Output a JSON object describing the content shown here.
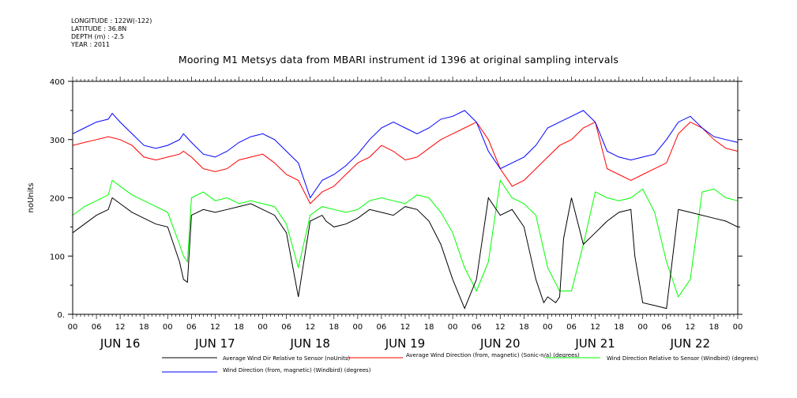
{
  "meta": {
    "longitude": "LONGITUDE : 122W(-122)",
    "latitude": "LATITUDE : 36.8N",
    "depth": "DEPTH (m) : -2.5",
    "year": "YEAR : 2011"
  },
  "chart_data": {
    "type": "line",
    "title": "Mooring M1 Metsys data from MBARI instrument id 1396 at original sampling intervals",
    "ylabel": "noUnits",
    "xlabel": "",
    "ylim": [
      0,
      400
    ],
    "y_ticks": [
      "0.",
      "100",
      "200",
      "300",
      "400"
    ],
    "x_range_hours": [
      0,
      168
    ],
    "x_hour_labels": [
      "00",
      "06",
      "12",
      "18",
      "00",
      "06",
      "12",
      "18",
      "00",
      "06",
      "12",
      "18",
      "00",
      "06",
      "12",
      "18",
      "00",
      "06",
      "12",
      "18",
      "00",
      "06",
      "12",
      "18",
      "00",
      "06",
      "12",
      "18",
      "00"
    ],
    "day_labels": [
      "JUN 16",
      "JUN 17",
      "JUN 18",
      "JUN 19",
      "JUN 20",
      "JUN 21",
      "JUN 22"
    ],
    "grid": false,
    "series": [
      {
        "name": "Average Wind Dir Relative to Sensor (noUnits)",
        "color": "#000000",
        "x": [
          0,
          3,
          6,
          9,
          10,
          12,
          15,
          18,
          21,
          24,
          27,
          28,
          29,
          30,
          33,
          36,
          39,
          42,
          45,
          48,
          51,
          54,
          57,
          60,
          63,
          64,
          66,
          69,
          72,
          75,
          78,
          81,
          84,
          87,
          90,
          93,
          96,
          99,
          102,
          105,
          108,
          111,
          114,
          117,
          119,
          120,
          122,
          123,
          124,
          126,
          129,
          132,
          135,
          138,
          141,
          142,
          144,
          147,
          150,
          153,
          156,
          159,
          162,
          165,
          168
        ],
        "values": [
          140,
          155,
          170,
          180,
          200,
          190,
          175,
          165,
          155,
          150,
          90,
          60,
          55,
          170,
          180,
          175,
          180,
          185,
          190,
          180,
          170,
          140,
          30,
          160,
          170,
          160,
          150,
          155,
          165,
          180,
          175,
          170,
          185,
          180,
          160,
          120,
          60,
          10,
          60,
          200,
          170,
          180,
          150,
          60,
          20,
          30,
          20,
          30,
          130,
          200,
          120,
          140,
          160,
          175,
          180,
          100,
          20,
          15,
          10,
          180,
          175,
          170,
          165,
          160,
          150
        ]
      },
      {
        "name": "Average Wind Direction (from, magnetic) (Sonic-n/a) (degrees)",
        "color": "#ff0000",
        "x": [
          0,
          3,
          6,
          9,
          12,
          15,
          18,
          21,
          24,
          27,
          28,
          30,
          33,
          36,
          39,
          42,
          45,
          48,
          51,
          54,
          57,
          60,
          63,
          66,
          69,
          72,
          75,
          78,
          81,
          84,
          87,
          90,
          93,
          96,
          99,
          102,
          105,
          108,
          111,
          114,
          117,
          120,
          123,
          126,
          129,
          132,
          135,
          138,
          141,
          144,
          147,
          150,
          153,
          156,
          159,
          162,
          165,
          168
        ],
        "values": [
          290,
          295,
          300,
          305,
          300,
          290,
          270,
          265,
          270,
          275,
          280,
          270,
          250,
          245,
          250,
          265,
          270,
          275,
          260,
          240,
          230,
          190,
          210,
          220,
          240,
          260,
          270,
          290,
          280,
          265,
          270,
          285,
          300,
          310,
          320,
          330,
          300,
          250,
          220,
          230,
          250,
          270,
          290,
          300,
          320,
          330,
          250,
          240,
          230,
          240,
          250,
          260,
          310,
          330,
          320,
          300,
          285,
          280
        ]
      },
      {
        "name": "Wind Direction Relative to Sensor (Windbird) (degrees)",
        "color": "#00ff00",
        "x": [
          0,
          3,
          6,
          9,
          10,
          12,
          15,
          18,
          21,
          24,
          27,
          28,
          29,
          30,
          33,
          36,
          39,
          42,
          45,
          48,
          51,
          54,
          57,
          60,
          63,
          66,
          69,
          72,
          75,
          78,
          81,
          84,
          87,
          90,
          93,
          96,
          99,
          102,
          105,
          108,
          111,
          114,
          117,
          120,
          123,
          126,
          129,
          132,
          135,
          138,
          141,
          144,
          147,
          150,
          153,
          156,
          159,
          162,
          165,
          168
        ],
        "values": [
          170,
          185,
          195,
          205,
          230,
          220,
          205,
          195,
          185,
          175,
          120,
          100,
          90,
          200,
          210,
          195,
          200,
          190,
          195,
          190,
          185,
          155,
          80,
          170,
          185,
          180,
          175,
          180,
          195,
          200,
          195,
          190,
          205,
          200,
          175,
          140,
          80,
          40,
          90,
          230,
          200,
          190,
          170,
          80,
          40,
          40,
          120,
          210,
          200,
          195,
          200,
          215,
          175,
          90,
          30,
          60,
          210,
          215,
          200,
          195
        ]
      },
      {
        "name": "Wind Direction (from, magnetic) (Windbird) (degrees)",
        "color": "#0000ff",
        "x": [
          0,
          3,
          6,
          9,
          10,
          12,
          15,
          18,
          21,
          24,
          27,
          28,
          30,
          33,
          36,
          39,
          42,
          45,
          48,
          51,
          54,
          57,
          60,
          63,
          66,
          69,
          72,
          75,
          78,
          81,
          84,
          87,
          90,
          93,
          96,
          99,
          102,
          105,
          108,
          111,
          114,
          117,
          120,
          123,
          126,
          129,
          132,
          135,
          138,
          141,
          144,
          147,
          150,
          153,
          156,
          159,
          162,
          165,
          168
        ],
        "values": [
          310,
          320,
          330,
          335,
          345,
          330,
          310,
          290,
          285,
          290,
          300,
          310,
          295,
          275,
          270,
          280,
          295,
          305,
          310,
          300,
          280,
          260,
          200,
          230,
          240,
          255,
          275,
          300,
          320,
          330,
          320,
          310,
          320,
          335,
          340,
          350,
          330,
          280,
          250,
          260,
          270,
          290,
          320,
          330,
          340,
          350,
          330,
          280,
          270,
          265,
          270,
          275,
          300,
          330,
          340,
          320,
          305,
          300,
          295
        ]
      }
    ],
    "legend": [
      {
        "text": "Average Wind Dir Relative to Sensor (noUnits)",
        "color": "#000000"
      },
      {
        "text": "Average Wind Direction (from, magnetic) (Sonic-n/a) (degrees)",
        "color": "#ff0000"
      },
      {
        "text": "Wind Direction Relative to Sensor (Windbird) (degrees)",
        "color": "#00ff00"
      },
      {
        "text": "Wind Direction (from, magnetic) (Windbird) (degrees)",
        "color": "#0000ff"
      }
    ]
  }
}
